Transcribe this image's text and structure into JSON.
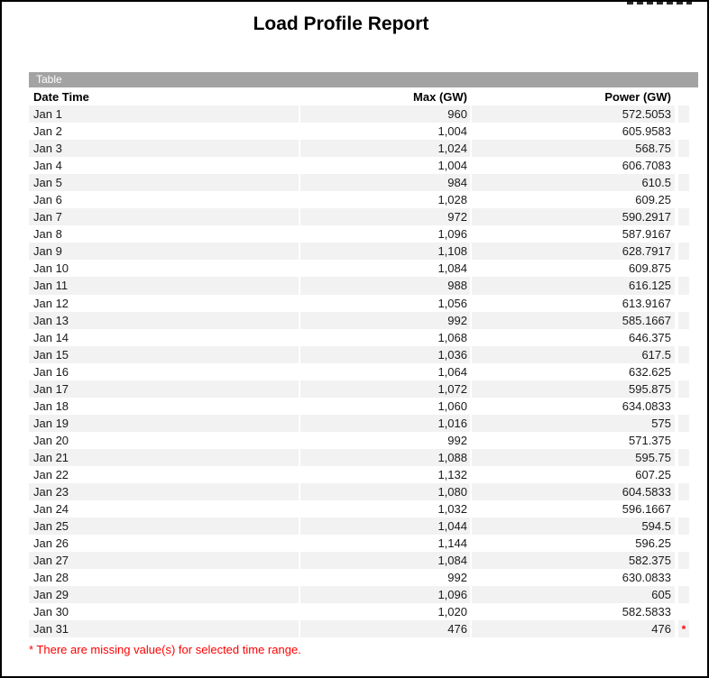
{
  "page": {
    "title": "Load Profile Report"
  },
  "table": {
    "section_label": "Table",
    "columns": [
      "Date Time",
      "Max (GW)",
      "Power (GW)"
    ],
    "rows": [
      {
        "date": "Jan 1",
        "max": "960",
        "power": "572.5053",
        "flag": ""
      },
      {
        "date": "Jan 2",
        "max": "1,004",
        "power": "605.9583",
        "flag": ""
      },
      {
        "date": "Jan 3",
        "max": "1,024",
        "power": "568.75",
        "flag": ""
      },
      {
        "date": "Jan 4",
        "max": "1,004",
        "power": "606.7083",
        "flag": ""
      },
      {
        "date": "Jan 5",
        "max": "984",
        "power": "610.5",
        "flag": ""
      },
      {
        "date": "Jan 6",
        "max": "1,028",
        "power": "609.25",
        "flag": ""
      },
      {
        "date": "Jan 7",
        "max": "972",
        "power": "590.2917",
        "flag": ""
      },
      {
        "date": "Jan 8",
        "max": "1,096",
        "power": "587.9167",
        "flag": ""
      },
      {
        "date": "Jan 9",
        "max": "1,108",
        "power": "628.7917",
        "flag": ""
      },
      {
        "date": "Jan 10",
        "max": "1,084",
        "power": "609.875",
        "flag": ""
      },
      {
        "date": "Jan 11",
        "max": "988",
        "power": "616.125",
        "flag": ""
      },
      {
        "date": "Jan 12",
        "max": "1,056",
        "power": "613.9167",
        "flag": ""
      },
      {
        "date": "Jan 13",
        "max": "992",
        "power": "585.1667",
        "flag": ""
      },
      {
        "date": "Jan 14",
        "max": "1,068",
        "power": "646.375",
        "flag": ""
      },
      {
        "date": "Jan 15",
        "max": "1,036",
        "power": "617.5",
        "flag": ""
      },
      {
        "date": "Jan 16",
        "max": "1,064",
        "power": "632.625",
        "flag": ""
      },
      {
        "date": "Jan 17",
        "max": "1,072",
        "power": "595.875",
        "flag": ""
      },
      {
        "date": "Jan 18",
        "max": "1,060",
        "power": "634.0833",
        "flag": ""
      },
      {
        "date": "Jan 19",
        "max": "1,016",
        "power": "575",
        "flag": ""
      },
      {
        "date": "Jan 20",
        "max": "992",
        "power": "571.375",
        "flag": ""
      },
      {
        "date": "Jan 21",
        "max": "1,088",
        "power": "595.75",
        "flag": ""
      },
      {
        "date": "Jan 22",
        "max": "1,132",
        "power": "607.25",
        "flag": ""
      },
      {
        "date": "Jan 23",
        "max": "1,080",
        "power": "604.5833",
        "flag": ""
      },
      {
        "date": "Jan 24",
        "max": "1,032",
        "power": "596.1667",
        "flag": ""
      },
      {
        "date": "Jan 25",
        "max": "1,044",
        "power": "594.5",
        "flag": ""
      },
      {
        "date": "Jan 26",
        "max": "1,144",
        "power": "596.25",
        "flag": ""
      },
      {
        "date": "Jan 27",
        "max": "1,084",
        "power": "582.375",
        "flag": ""
      },
      {
        "date": "Jan 28",
        "max": "992",
        "power": "630.0833",
        "flag": ""
      },
      {
        "date": "Jan 29",
        "max": "1,096",
        "power": "605",
        "flag": ""
      },
      {
        "date": "Jan 30",
        "max": "1,020",
        "power": "582.5833",
        "flag": ""
      },
      {
        "date": "Jan 31",
        "max": "476",
        "power": "476",
        "flag": "*"
      }
    ],
    "footnote": "* There are missing value(s) for selected time range."
  },
  "colors": {
    "section_bar_bg": "#a3a3a3",
    "row_stripe": "#f2f2f2",
    "alert_red": "#ff0000",
    "border": "#000000"
  }
}
